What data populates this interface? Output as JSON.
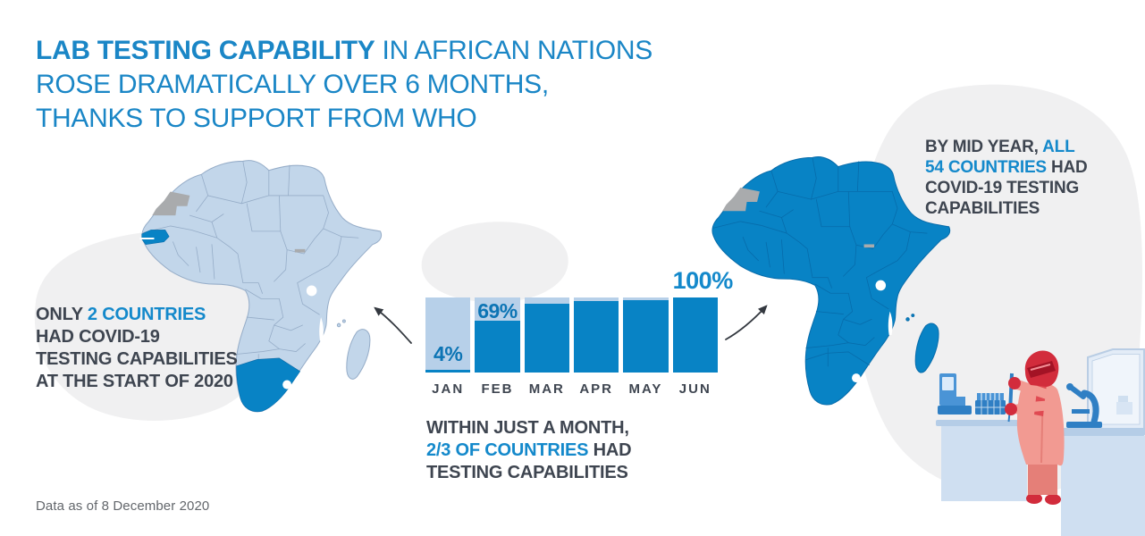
{
  "title": {
    "lines": [
      [
        {
          "text": "LAB TESTING CAPABILITY",
          "style": "title-bold"
        },
        {
          "text": " IN AFRICAN NATIONS",
          "style": "title"
        }
      ],
      [
        {
          "text": "ROSE DRAMATICALLY OVER 6 MONTHS,",
          "style": "title"
        }
      ],
      [
        {
          "text": "THANKS TO SUPPORT FROM WHO",
          "style": "title"
        }
      ]
    ]
  },
  "annotations": {
    "left": {
      "lines": [
        [
          {
            "text": "ONLY ",
            "style": "dark"
          },
          {
            "text": "2 COUNTRIES",
            "style": "accent"
          }
        ],
        [
          {
            "text": "HAD COVID-19",
            "style": "dark"
          }
        ],
        [
          {
            "text": "TESTING CAPABILITIES",
            "style": "dark"
          }
        ],
        [
          {
            "text": "AT THE START OF 2020",
            "style": "dark"
          }
        ]
      ]
    },
    "center": {
      "lines": [
        [
          {
            "text": "WITHIN JUST A MONTH,",
            "style": "dark"
          }
        ],
        [
          {
            "text": "2/3 OF COUNTRIES",
            "style": "accent"
          },
          {
            "text": " HAD",
            "style": "dark"
          }
        ],
        [
          {
            "text": "TESTING CAPABILITIES",
            "style": "dark"
          }
        ]
      ]
    },
    "right": {
      "lines": [
        [
          {
            "text": "BY MID YEAR, ",
            "style": "dark"
          },
          {
            "text": "ALL",
            "style": "accent"
          }
        ],
        [
          {
            "text": "54 COUNTRIES",
            "style": "accent"
          },
          {
            "text": " HAD",
            "style": "dark"
          }
        ],
        [
          {
            "text": "COVID-19 TESTING",
            "style": "dark"
          }
        ],
        [
          {
            "text": "CAPABILITIES",
            "style": "dark"
          }
        ]
      ]
    }
  },
  "chart_data": {
    "type": "bar",
    "categories": [
      "JAN",
      "FEB",
      "MAR",
      "APR",
      "MAY",
      "JUN"
    ],
    "values": [
      4,
      69,
      92,
      95,
      97,
      100
    ],
    "unit": "%",
    "ylim": [
      0,
      100
    ],
    "grid": false,
    "bar_labels": [
      {
        "index": 0,
        "text": "4%",
        "position": "inside-bottom"
      },
      {
        "index": 1,
        "text": "69%",
        "position": "inside-top"
      },
      {
        "index": 5,
        "text": "100%",
        "position": "above"
      }
    ]
  },
  "footer": {
    "text": "Data as of 8 December 2020"
  },
  "colors": {
    "accent": "#1489cb",
    "accent_dark": "#0c74b4",
    "title_blue": "#1a86c6",
    "text_dark": "#3e4550",
    "footer_gray": "#63676c",
    "bar_fill": "#0883c5",
    "bar_track": "#b7d0e9",
    "map_light": "#c2d6ea",
    "map_light_border": "#96adc8",
    "map_dark": "#0883c5",
    "map_dark_border": "#076cab",
    "map_disputed": "#a9abad",
    "blob_gray": "#f0f0f1",
    "arrow_dark": "#33383f",
    "person_red": "#d22c3c",
    "person_red_dark": "#a31325",
    "person_pink": "#f29a92",
    "person_pink_dark": "#e57f78",
    "equip_blue": "#4a94d6",
    "equip_blue_dark": "#2f7fc4",
    "bench": "#cfdff1",
    "bench_dark": "#b5cde7",
    "cabinet": "#e3ecf7",
    "cabinet_frame": "#b9cde4"
  }
}
